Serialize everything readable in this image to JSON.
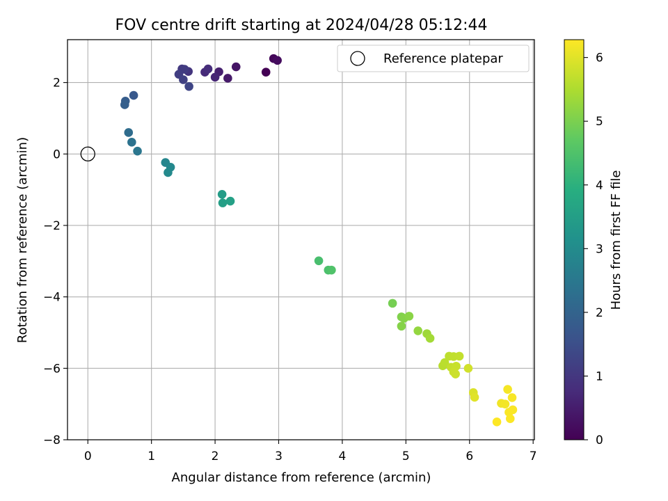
{
  "chart_data": {
    "type": "scatter",
    "title": "FOV centre drift starting at 2024/04/28 05:12:44",
    "xlabel": "Angular distance from reference (arcmin)",
    "ylabel": "Rotation from reference (arcmin)",
    "xlim": [
      -0.32,
      7.02
    ],
    "ylim": [
      -8.0,
      3.2
    ],
    "xticks": [
      0,
      1,
      2,
      3,
      4,
      5,
      6,
      7
    ],
    "yticks": [
      -8,
      -6,
      -4,
      -2,
      0,
      2
    ],
    "grid": true,
    "legend": {
      "placement": "top-right",
      "entries": [
        "Reference platepar"
      ]
    },
    "reference_point": {
      "x": 0,
      "y": 0,
      "label": "Reference platepar"
    },
    "colorbar": {
      "label": "Hours from first FF file",
      "range": [
        0,
        6.28
      ],
      "ticks": [
        0,
        1,
        2,
        3,
        4,
        5,
        6
      ],
      "colormap": "viridis"
    },
    "points": [
      {
        "x": 2.8,
        "y": 2.29,
        "c": 0.0
      },
      {
        "x": 2.92,
        "y": 2.67,
        "c": 0.1
      },
      {
        "x": 2.98,
        "y": 2.62,
        "c": 0.2
      },
      {
        "x": 2.33,
        "y": 2.44,
        "c": 0.35
      },
      {
        "x": 2.2,
        "y": 2.12,
        "c": 0.45
      },
      {
        "x": 2.06,
        "y": 2.3,
        "c": 0.55
      },
      {
        "x": 2.0,
        "y": 2.15,
        "c": 0.65
      },
      {
        "x": 1.84,
        "y": 2.29,
        "c": 0.75
      },
      {
        "x": 1.89,
        "y": 2.38,
        "c": 0.8
      },
      {
        "x": 1.58,
        "y": 2.31,
        "c": 0.95
      },
      {
        "x": 1.48,
        "y": 2.38,
        "c": 1.05
      },
      {
        "x": 1.52,
        "y": 2.37,
        "c": 1.1
      },
      {
        "x": 1.43,
        "y": 2.23,
        "c": 1.15
      },
      {
        "x": 1.5,
        "y": 2.08,
        "c": 1.2
      },
      {
        "x": 1.59,
        "y": 1.89,
        "c": 1.3
      },
      {
        "x": 0.72,
        "y": 1.64,
        "c": 1.75
      },
      {
        "x": 0.59,
        "y": 1.48,
        "c": 1.85
      },
      {
        "x": 0.58,
        "y": 1.38,
        "c": 1.9
      },
      {
        "x": 0.64,
        "y": 0.6,
        "c": 2.2
      },
      {
        "x": 0.69,
        "y": 0.33,
        "c": 2.35
      },
      {
        "x": 0.78,
        "y": 0.08,
        "c": 2.45
      },
      {
        "x": 1.22,
        "y": -0.24,
        "c": 2.85
      },
      {
        "x": 1.3,
        "y": -0.37,
        "c": 2.9
      },
      {
        "x": 1.26,
        "y": -0.52,
        "c": 2.95
      },
      {
        "x": 2.11,
        "y": -1.13,
        "c": 3.45
      },
      {
        "x": 2.12,
        "y": -1.37,
        "c": 3.5
      },
      {
        "x": 2.24,
        "y": -1.32,
        "c": 3.55
      },
      {
        "x": 3.63,
        "y": -2.99,
        "c": 4.4
      },
      {
        "x": 3.78,
        "y": -3.25,
        "c": 4.45
      },
      {
        "x": 3.83,
        "y": -3.25,
        "c": 4.5
      },
      {
        "x": 4.79,
        "y": -4.18,
        "c": 4.95
      },
      {
        "x": 4.93,
        "y": -4.56,
        "c": 5.05
      },
      {
        "x": 4.97,
        "y": -4.6,
        "c": 5.1
      },
      {
        "x": 5.05,
        "y": -4.54,
        "c": 5.15
      },
      {
        "x": 4.93,
        "y": -4.82,
        "c": 5.1
      },
      {
        "x": 5.19,
        "y": -4.95,
        "c": 5.25
      },
      {
        "x": 5.33,
        "y": -5.03,
        "c": 5.35
      },
      {
        "x": 5.38,
        "y": -5.16,
        "c": 5.4
      },
      {
        "x": 5.58,
        "y": -5.93,
        "c": 5.6
      },
      {
        "x": 5.61,
        "y": -5.84,
        "c": 5.62
      },
      {
        "x": 5.68,
        "y": -5.66,
        "c": 5.65
      },
      {
        "x": 5.75,
        "y": -5.67,
        "c": 5.68
      },
      {
        "x": 5.84,
        "y": -5.66,
        "c": 5.7
      },
      {
        "x": 5.71,
        "y": -5.97,
        "c": 5.72
      },
      {
        "x": 5.79,
        "y": -5.94,
        "c": 5.75
      },
      {
        "x": 5.75,
        "y": -6.1,
        "c": 5.78
      },
      {
        "x": 5.78,
        "y": -6.16,
        "c": 5.8
      },
      {
        "x": 5.98,
        "y": -6.0,
        "c": 5.85
      },
      {
        "x": 6.06,
        "y": -6.68,
        "c": 5.95
      },
      {
        "x": 6.08,
        "y": -6.81,
        "c": 6.0
      },
      {
        "x": 6.5,
        "y": -6.98,
        "c": 6.15
      },
      {
        "x": 6.56,
        "y": -7.0,
        "c": 6.18
      },
      {
        "x": 6.6,
        "y": -6.59,
        "c": 6.2
      },
      {
        "x": 6.67,
        "y": -6.82,
        "c": 6.22
      },
      {
        "x": 6.68,
        "y": -7.16,
        "c": 6.24
      },
      {
        "x": 6.62,
        "y": -7.23,
        "c": 6.25
      },
      {
        "x": 6.64,
        "y": -7.41,
        "c": 6.26
      },
      {
        "x": 6.43,
        "y": -7.5,
        "c": 6.28
      }
    ]
  }
}
